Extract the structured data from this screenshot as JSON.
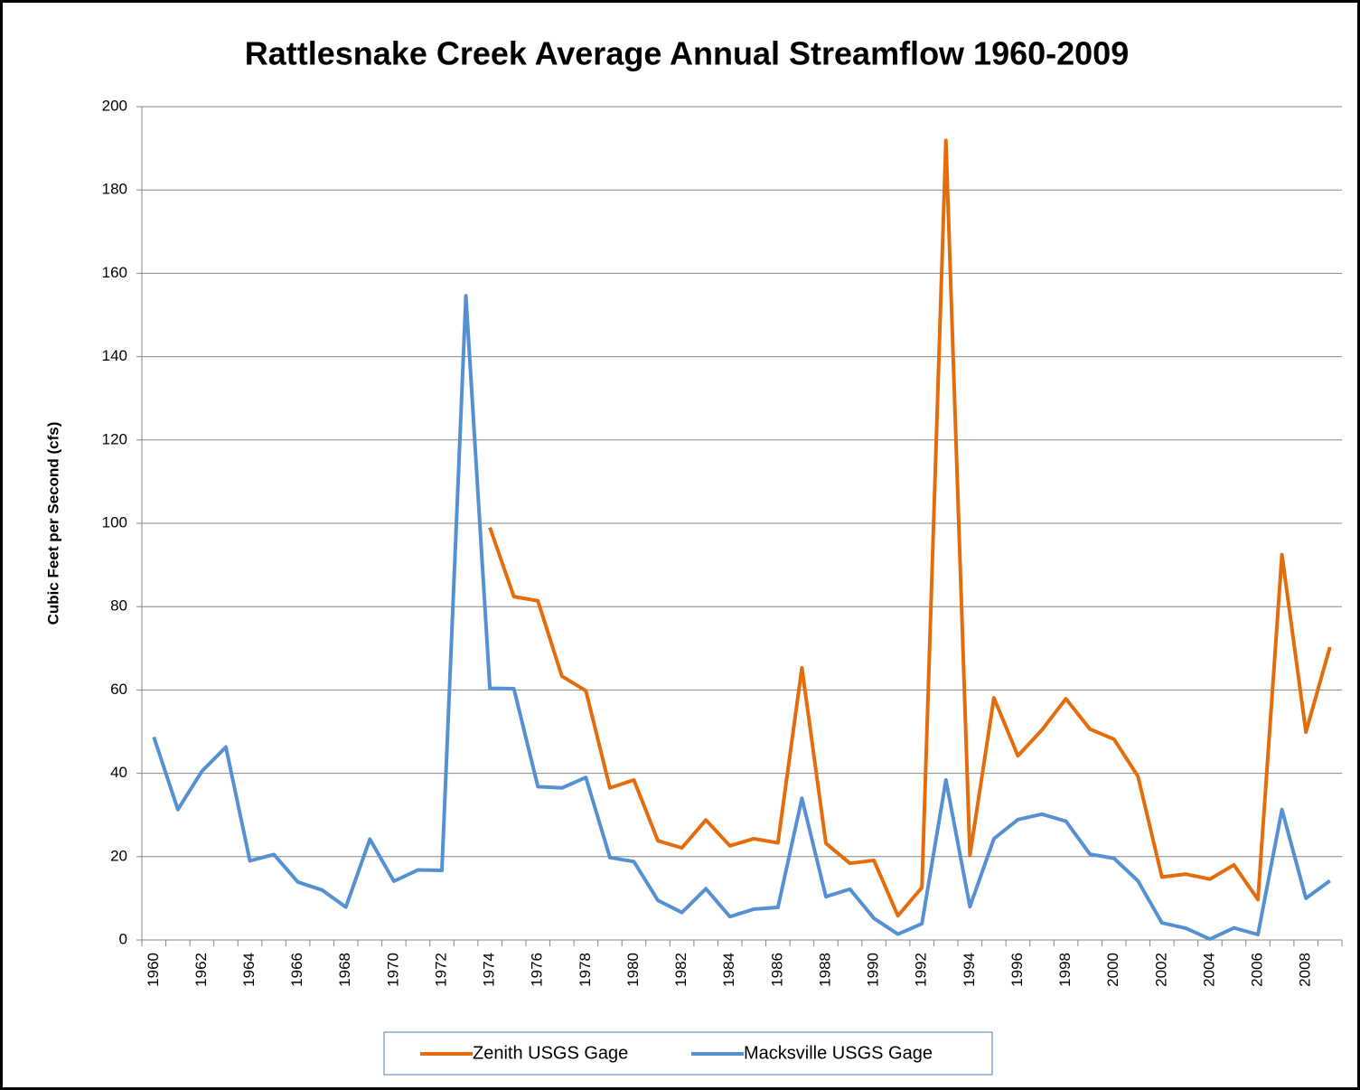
{
  "chart_data": {
    "type": "line",
    "title": "Rattlesnake Creek Average Annual Streamflow 1960-2009",
    "y_label": "Cubic Feet per Second (cfs)",
    "categories": [
      "1960",
      null,
      "1962",
      null,
      "1964",
      null,
      "1966",
      null,
      "1968",
      null,
      "1970",
      null,
      "1972",
      null,
      "1974",
      null,
      "1976",
      null,
      "1978",
      null,
      "1980",
      null,
      "1982",
      null,
      "1984",
      null,
      "1986",
      null,
      "1988",
      null,
      "1990",
      null,
      "1992",
      null,
      "1994",
      null,
      "1996",
      null,
      "1998",
      null,
      "2000",
      null,
      "2002",
      null,
      "2004",
      null,
      "2006",
      null,
      "2008",
      null
    ],
    "series": [
      {
        "name": "Zenith USGS Gage",
        "color": "#e46c0a",
        "values": [
          null,
          null,
          null,
          null,
          null,
          null,
          null,
          null,
          null,
          null,
          null,
          null,
          null,
          null,
          99,
          82.4,
          81.4,
          63.3,
          59.8,
          36.5,
          38.4,
          23.8,
          22.1,
          28.8,
          22.6,
          24.3,
          23.3,
          65.3,
          23.2,
          18.4,
          19.1,
          5.8,
          12.6,
          191.9,
          20.3,
          58.1,
          44.2,
          50.4,
          57.9,
          50.6,
          48.2,
          39.3,
          15.1,
          15.8,
          14.6,
          18,
          9.7,
          92.5,
          49.9,
          70.3
        ]
      },
      {
        "name": "Macksville USGS Gage",
        "color": "#5590d2",
        "values": [
          48.7,
          31.3,
          40.5,
          46.3,
          19,
          20.5,
          13.9,
          12,
          7.9,
          24.2,
          14.1,
          16.8,
          16.7,
          154.6,
          60.4,
          60.3,
          36.8,
          36.5,
          39,
          19.8,
          18.8,
          9.5,
          6.6,
          12.3,
          5.6,
          7.4,
          7.8,
          34,
          10.4,
          12.2,
          5.2,
          1.4,
          3.9,
          38.4,
          8,
          24.3,
          28.9,
          30.2,
          28.5,
          20.6,
          19.6,
          14.2,
          4.1,
          2.8,
          0.2,
          2.9,
          1.3,
          31.3,
          10,
          14.2
        ]
      }
    ],
    "ylim": [
      0,
      200
    ],
    "yticks": [
      0,
      20,
      40,
      60,
      80,
      100,
      120,
      140,
      160,
      180,
      200
    ],
    "grid": true,
    "legend": "bottom"
  }
}
